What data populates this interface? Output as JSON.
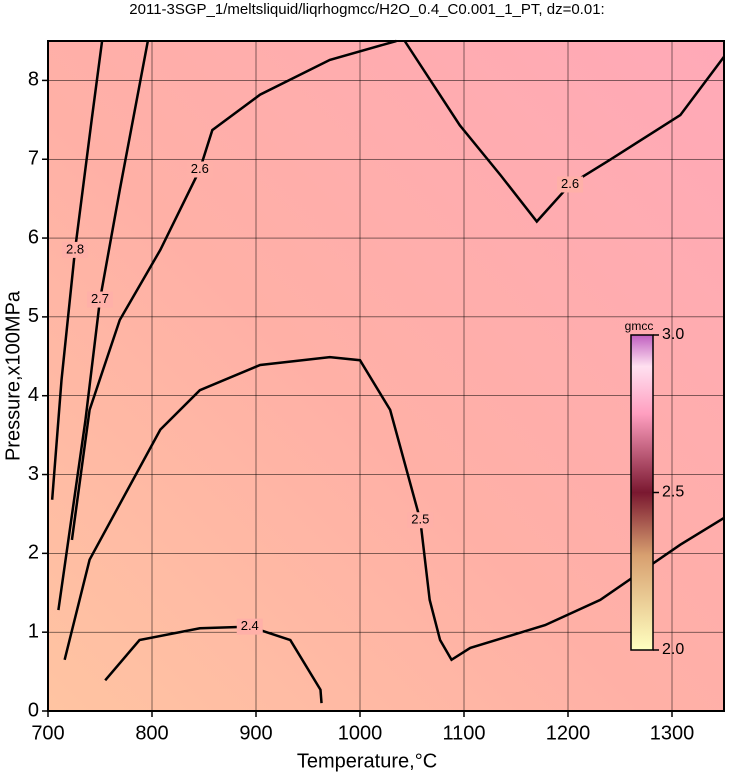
{
  "chart_data": {
    "type": "contour",
    "title": "2011-3SGP_1/meltsliquid/liqrhogmcc/H2O_0.4_C0.001_1_PT, dz=0.01:",
    "xlabel": "Temperature,°C",
    "ylabel": "Pressure,x100MPa",
    "xlim": [
      700,
      1350
    ],
    "ylim": [
      0,
      8.5
    ],
    "xticks": [
      700,
      800,
      900,
      1000,
      1100,
      1200,
      1300
    ],
    "yticks": [
      0,
      1,
      2,
      3,
      4,
      5,
      6,
      7,
      8
    ],
    "grid": true,
    "colorbar": {
      "label": "gmcc",
      "lim": [
        2.0,
        3.0
      ],
      "ticks": [
        {
          "value": 2.0,
          "label": "2.0"
        },
        2.5,
        {
          "value": 3.0,
          "label": "3.0"
        }
      ]
    },
    "contours": [
      {
        "level": 2.4,
        "x": [
          755,
          788,
          846,
          894,
          933,
          962,
          963
        ],
        "y": [
          0.39,
          0.9,
          1.05,
          1.07,
          0.9,
          0.27,
          0.1
        ]
      },
      {
        "level": 2.5,
        "x": [
          716,
          740,
          808,
          846,
          904,
          971,
          1000,
          1029,
          1058,
          1067,
          1077,
          1088,
          1106,
          1178,
          1231,
          1308,
          1350
        ],
        "y": [
          0.65,
          1.92,
          3.57,
          4.07,
          4.39,
          4.49,
          4.45,
          3.82,
          2.42,
          1.41,
          0.9,
          0.65,
          0.8,
          1.09,
          1.41,
          2.11,
          2.45
        ]
      },
      {
        "level": 2.6,
        "x": [
          723,
          740,
          769,
          808,
          846,
          858,
          904,
          971,
          1035
        ],
        "y": [
          2.17,
          3.82,
          4.96,
          5.85,
          6.87,
          7.37,
          7.82,
          8.26,
          8.5
        ]
      },
      {
        "level": 2.6,
        "x": [
          1043,
          1096,
          1135,
          1170,
          1202,
          1240,
          1308,
          1350
        ],
        "y": [
          8.5,
          7.43,
          6.8,
          6.21,
          6.68,
          6.99,
          7.56,
          8.3
        ]
      },
      {
        "level": 2.7,
        "x": [
          710,
          736,
          750,
          769,
          796
        ],
        "y": [
          1.28,
          3.69,
          5.22,
          6.61,
          8.5
        ]
      },
      {
        "level": 2.8,
        "x": [
          704,
          713,
          726,
          742,
          752
        ],
        "y": [
          2.68,
          4.2,
          5.85,
          7.5,
          8.5
        ]
      }
    ]
  }
}
